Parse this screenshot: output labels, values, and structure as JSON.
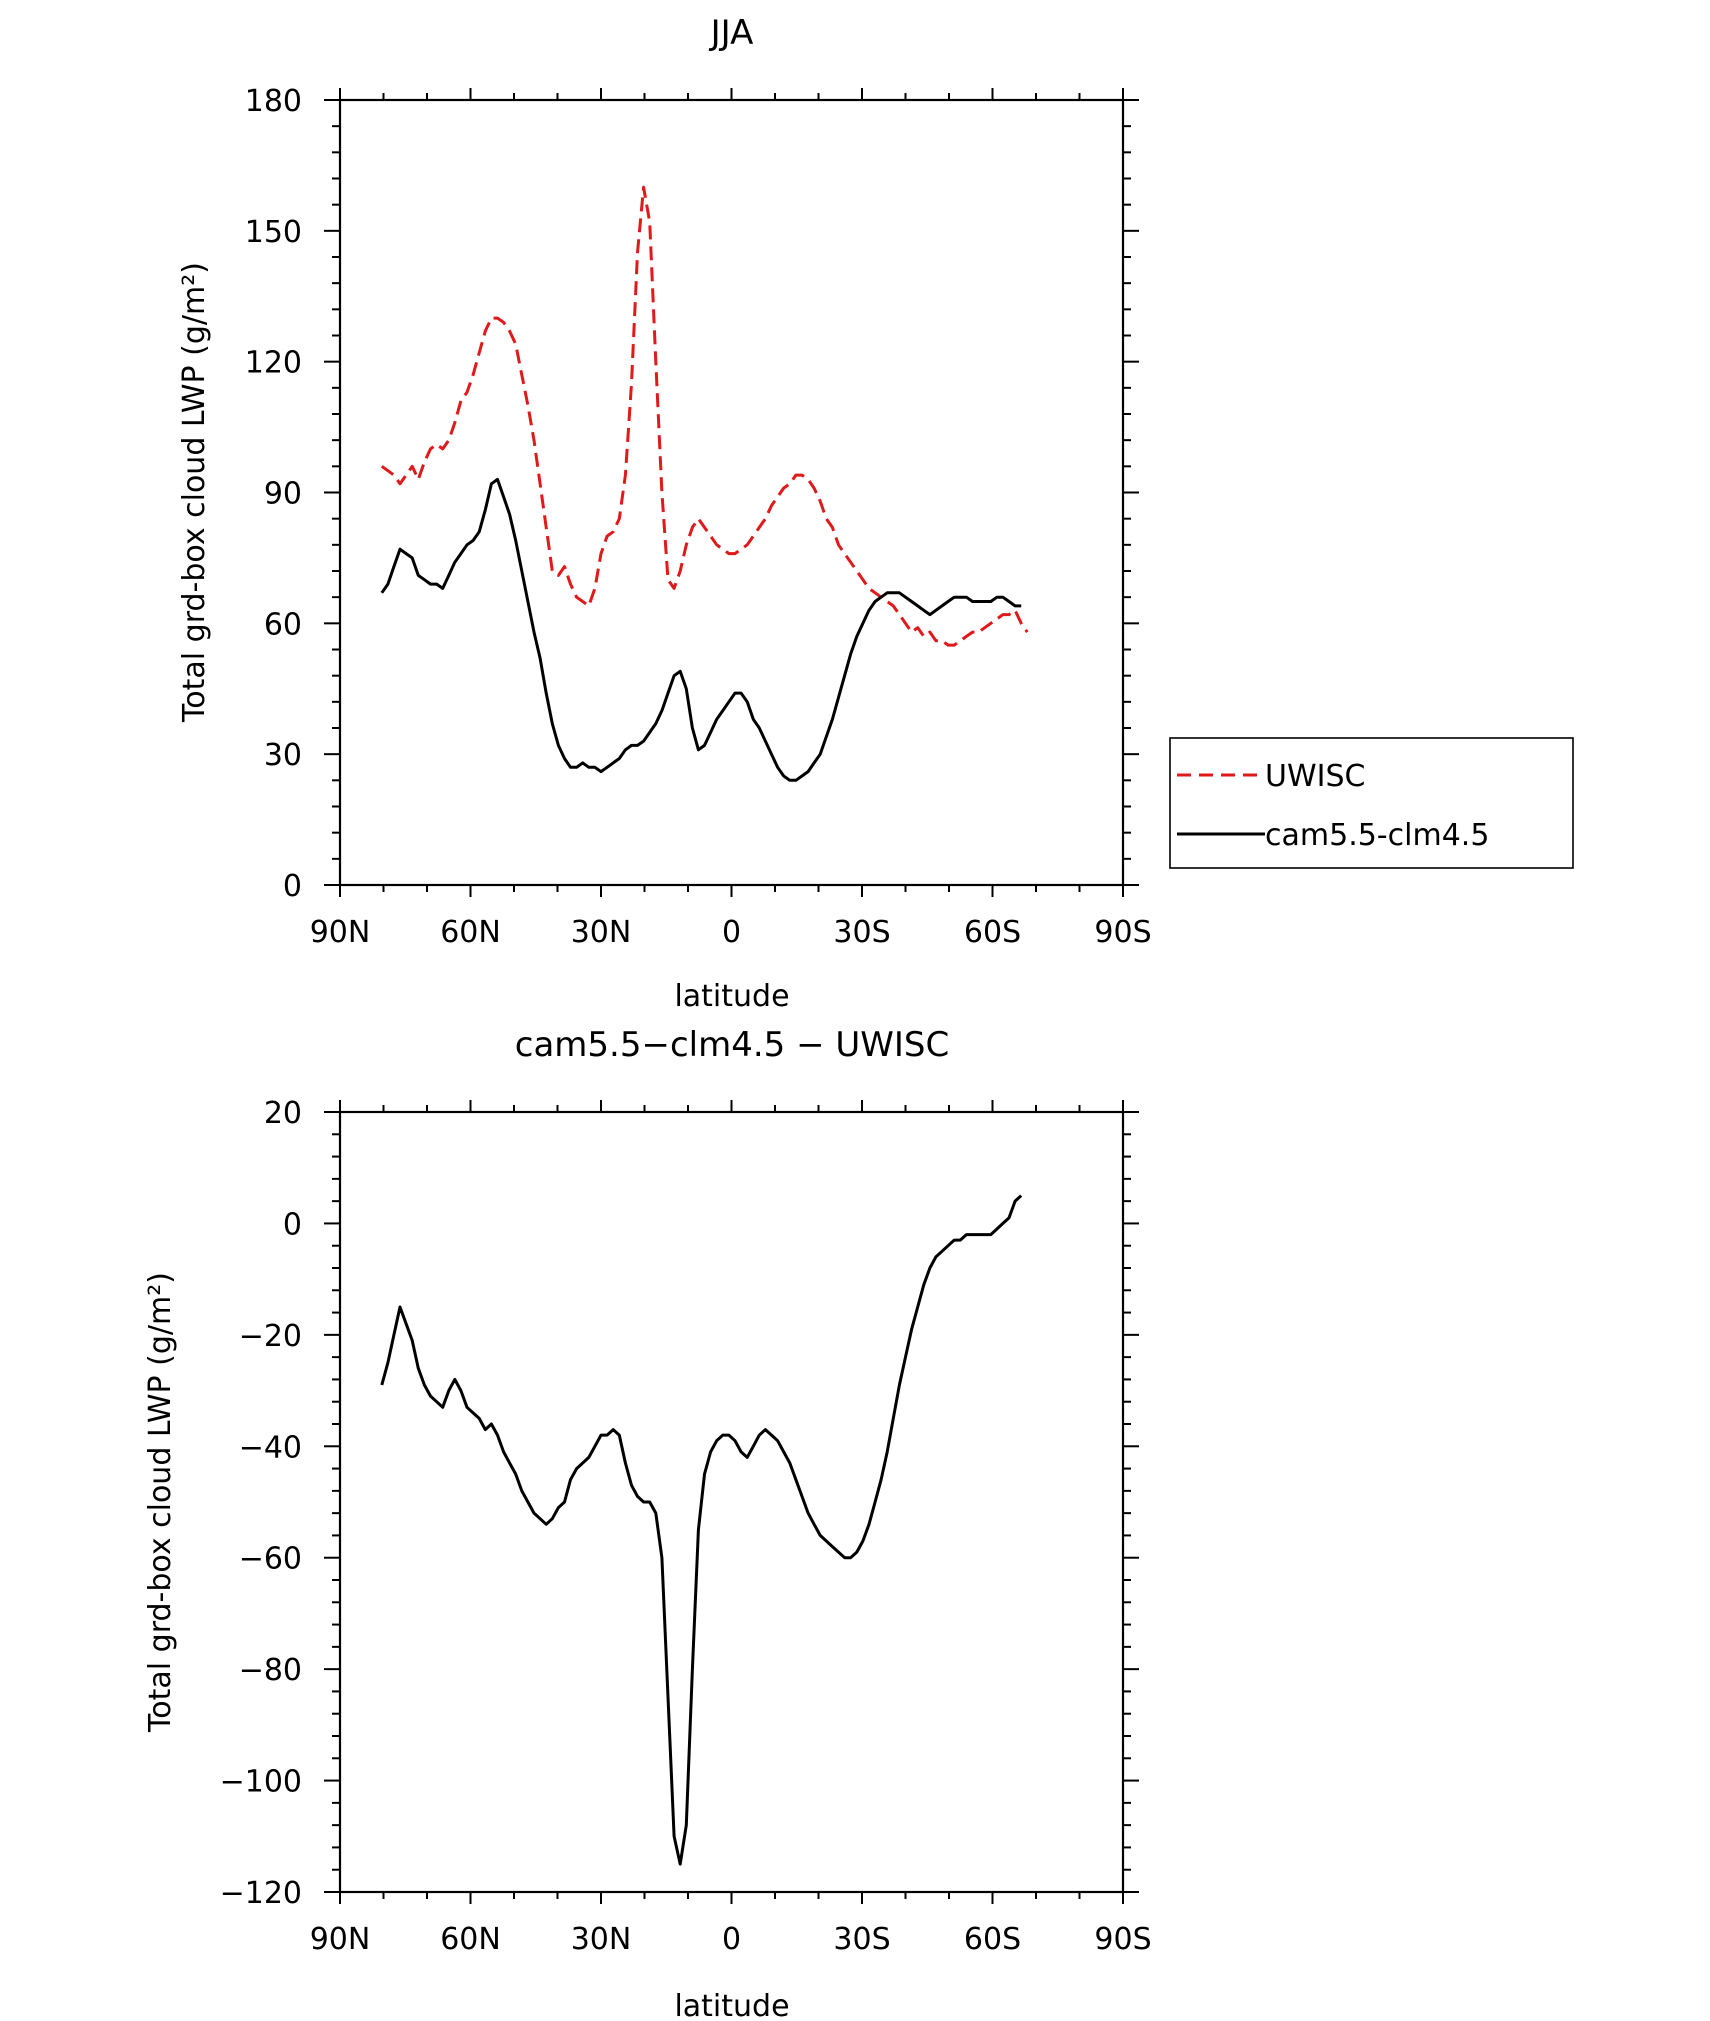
{
  "chart_data": [
    {
      "type": "line",
      "title": "JJA",
      "xlabel": "latitude",
      "ylabel": "Total grd-box cloud LWP (g/m²)",
      "xlim": [
        90,
        -90
      ],
      "ylim": [
        0,
        180
      ],
      "x_ticks": [
        90,
        60,
        30,
        0,
        -30,
        -60,
        -90
      ],
      "x_tick_labels": [
        "90N",
        "60N",
        "30N",
        "0",
        "30S",
        "60S",
        "90S"
      ],
      "y_ticks": [
        0,
        30,
        60,
        90,
        120,
        150,
        180
      ],
      "y_tick_labels": [
        "0",
        "30",
        "60",
        "90",
        "120",
        "150",
        "180"
      ],
      "legend": {
        "placement": "right",
        "entries": [
          "UWISC",
          "cam5.5-clm4.5"
        ]
      },
      "series": [
        {
          "name": "UWISC",
          "color": "#e0191a",
          "dash": "dashed",
          "x": [
            80.4,
            79,
            77.6,
            76.2,
            74.8,
            73.4,
            72,
            70.6,
            69.2,
            67.8,
            66.4,
            65,
            63.6,
            62.2,
            60.8,
            59.4,
            58,
            56.6,
            55.2,
            53.8,
            52.4,
            51,
            49.6,
            48.2,
            46.8,
            45.4,
            44,
            42.6,
            41.2,
            39.8,
            38.4,
            37,
            35.6,
            34.2,
            32.8,
            31.4,
            30,
            28.6,
            27.2,
            25.8,
            24.4,
            23,
            21.6,
            20.2,
            18.8,
            17.4,
            16,
            14.6,
            13.2,
            11.8,
            10.4,
            9,
            7.6,
            6.2,
            4.8,
            3.4,
            2,
            0.6,
            -0.8,
            -2.2,
            -3.6,
            -5,
            -6.4,
            -7.8,
            -9.2,
            -10.6,
            -12,
            -13.4,
            -14.8,
            -16.2,
            -17.6,
            -19,
            -20.4,
            -21.8,
            -23.2,
            -24.6,
            -26,
            -27.4,
            -28.8,
            -30.2,
            -31.6,
            -33,
            -34.4,
            -35.8,
            -37.2,
            -38.6,
            -40,
            -41.4,
            -42.8,
            -44.2,
            -45.6,
            -47,
            -48.4,
            -49.8,
            -51.2,
            -52.6,
            -54,
            -55.4,
            -56.8,
            -58.2,
            -59.6,
            -61,
            -62.4,
            -63.8,
            -65.2,
            -66.6,
            -68
          ],
          "y": [
            96,
            95,
            94,
            92,
            94,
            96,
            93,
            97,
            100,
            101,
            100,
            102,
            106,
            111,
            113,
            117,
            122,
            127,
            130,
            130,
            129,
            127,
            124,
            117,
            110,
            102,
            92,
            82,
            72,
            71,
            73,
            69,
            66,
            65,
            64,
            68,
            76,
            80,
            81,
            84,
            94,
            115,
            145,
            160,
            152,
            120,
            90,
            70,
            68,
            72,
            78,
            82,
            84,
            82,
            80,
            78,
            77,
            76,
            76,
            77,
            78,
            80,
            82,
            84,
            87,
            89,
            91,
            92,
            94,
            94,
            93,
            91,
            88,
            84,
            82,
            78,
            76,
            74,
            72,
            70,
            68,
            67,
            66,
            65,
            64,
            62,
            60,
            58,
            59,
            57,
            58,
            56,
            56,
            55,
            55,
            56,
            57,
            58,
            58,
            59,
            60,
            61,
            62,
            62,
            63,
            60,
            58
          ]
        },
        {
          "name": "cam5.5-clm4.5",
          "color": "#000000",
          "dash": "solid",
          "x": [
            80.4,
            79,
            77.6,
            76.2,
            74.8,
            73.4,
            72,
            70.6,
            69.2,
            67.8,
            66.4,
            65,
            63.6,
            62.2,
            60.8,
            59.4,
            58,
            56.6,
            55.2,
            53.8,
            52.4,
            51,
            49.6,
            48.2,
            46.8,
            45.4,
            44,
            42.6,
            41.2,
            39.8,
            38.4,
            37,
            35.6,
            34.2,
            32.8,
            31.4,
            30,
            28.6,
            27.2,
            25.8,
            24.4,
            23,
            21.6,
            20.2,
            18.8,
            17.4,
            16,
            14.6,
            13.2,
            11.8,
            10.4,
            9,
            7.6,
            6.2,
            4.8,
            3.4,
            2,
            0.6,
            -0.8,
            -2.2,
            -3.6,
            -5,
            -6.4,
            -7.8,
            -9.2,
            -10.6,
            -12,
            -13.4,
            -14.8,
            -16.2,
            -17.6,
            -19,
            -20.4,
            -21.8,
            -23.2,
            -24.6,
            -26,
            -27.4,
            -28.8,
            -30.2,
            -31.6,
            -33,
            -34.4,
            -35.8,
            -37.2,
            -38.6,
            -40,
            -41.4,
            -42.8,
            -44.2,
            -45.6,
            -47,
            -48.4,
            -49.8,
            -51.2,
            -52.6,
            -54,
            -55.4,
            -56.8,
            -58.2,
            -59.6,
            -61,
            -62.4,
            -63.8,
            -65.2,
            -66.6
          ],
          "y": [
            67,
            69,
            73,
            77,
            76,
            75,
            71,
            70,
            69,
            69,
            68,
            71,
            74,
            76,
            78,
            79,
            81,
            86,
            92,
            93,
            89,
            85,
            79,
            72,
            65,
            58,
            52,
            44,
            37,
            32,
            29,
            27,
            27,
            28,
            27,
            27,
            26,
            27,
            28,
            29,
            31,
            32,
            32,
            33,
            35,
            37,
            40,
            44,
            48,
            49,
            45,
            36,
            31,
            32,
            35,
            38,
            40,
            42,
            44,
            44,
            42,
            38,
            36,
            33,
            30,
            27,
            25,
            24,
            24,
            25,
            26,
            28,
            30,
            34,
            38,
            43,
            48,
            53,
            57,
            60,
            63,
            65,
            66,
            67,
            67,
            67,
            66,
            65,
            64,
            63,
            62,
            63,
            64,
            65,
            66,
            66,
            66,
            65,
            65,
            65,
            65,
            66,
            66,
            65,
            64,
            64
          ]
        }
      ]
    },
    {
      "type": "line",
      "title": "cam5.5−clm4.5 − UWISC",
      "xlabel": "latitude",
      "ylabel": "Total grd-box cloud LWP (g/m²)",
      "xlim": [
        90,
        -90
      ],
      "ylim": [
        -120,
        20
      ],
      "x_ticks": [
        90,
        60,
        30,
        0,
        -30,
        -60,
        -90
      ],
      "x_tick_labels": [
        "90N",
        "60N",
        "30N",
        "0",
        "30S",
        "60S",
        "90S"
      ],
      "y_ticks": [
        -120,
        -100,
        -80,
        -60,
        -40,
        -20,
        0,
        20
      ],
      "y_tick_labels": [
        "−120",
        "−100",
        "−80",
        "−60",
        "−40",
        "−20",
        "0",
        "20"
      ],
      "series": [
        {
          "name": "cam5.5-clm4.5 - UWISC",
          "color": "#000000",
          "dash": "solid",
          "x": [
            80.4,
            79,
            77.6,
            76.2,
            74.8,
            73.4,
            72,
            70.6,
            69.2,
            67.8,
            66.4,
            65,
            63.6,
            62.2,
            60.8,
            59.4,
            58,
            56.6,
            55.2,
            53.8,
            52.4,
            51,
            49.6,
            48.2,
            46.8,
            45.4,
            44,
            42.6,
            41.2,
            39.8,
            38.4,
            37,
            35.6,
            34.2,
            32.8,
            31.4,
            30,
            28.6,
            27.2,
            25.8,
            24.4,
            23,
            21.6,
            20.2,
            18.8,
            17.4,
            16,
            14.6,
            13.2,
            11.8,
            10.4,
            9,
            7.6,
            6.2,
            4.8,
            3.4,
            2,
            0.6,
            -0.8,
            -2.2,
            -3.6,
            -5,
            -6.4,
            -7.8,
            -9.2,
            -10.6,
            -12,
            -13.4,
            -14.8,
            -16.2,
            -17.6,
            -19,
            -20.4,
            -21.8,
            -23.2,
            -24.6,
            -26,
            -27.4,
            -28.8,
            -30.2,
            -31.6,
            -33,
            -34.4,
            -35.8,
            -37.2,
            -38.6,
            -40,
            -41.4,
            -42.8,
            -44.2,
            -45.6,
            -47,
            -48.4,
            -49.8,
            -51.2,
            -52.6,
            -54,
            -55.4,
            -56.8,
            -58.2,
            -59.6,
            -61,
            -62.4,
            -63.8,
            -65.2,
            -66.6
          ],
          "y": [
            -29,
            -25,
            -20,
            -15,
            -18,
            -21,
            -26,
            -29,
            -31,
            -32,
            -33,
            -30,
            -28,
            -30,
            -33,
            -34,
            -35,
            -37,
            -36,
            -38,
            -41,
            -43,
            -45,
            -48,
            -50,
            -52,
            -53,
            -54,
            -53,
            -51,
            -50,
            -46,
            -44,
            -43,
            -42,
            -40,
            -38,
            -38,
            -37,
            -38,
            -43,
            -47,
            -49,
            -50,
            -50,
            -52,
            -60,
            -85,
            -110,
            -115,
            -108,
            -80,
            -55,
            -45,
            -41,
            -39,
            -38,
            -38,
            -39,
            -41,
            -42,
            -40,
            -38,
            -37,
            -38,
            -39,
            -41,
            -43,
            -46,
            -49,
            -52,
            -54,
            -56,
            -57,
            -58,
            -59,
            -60,
            -60,
            -59,
            -57,
            -54,
            -50,
            -46,
            -41,
            -35,
            -29,
            -24,
            -19,
            -15,
            -11,
            -8,
            -6,
            -5,
            -4,
            -3,
            -3,
            -2,
            -2,
            -2,
            -2,
            -2,
            -1,
            0,
            1,
            4,
            5
          ]
        }
      ]
    }
  ]
}
